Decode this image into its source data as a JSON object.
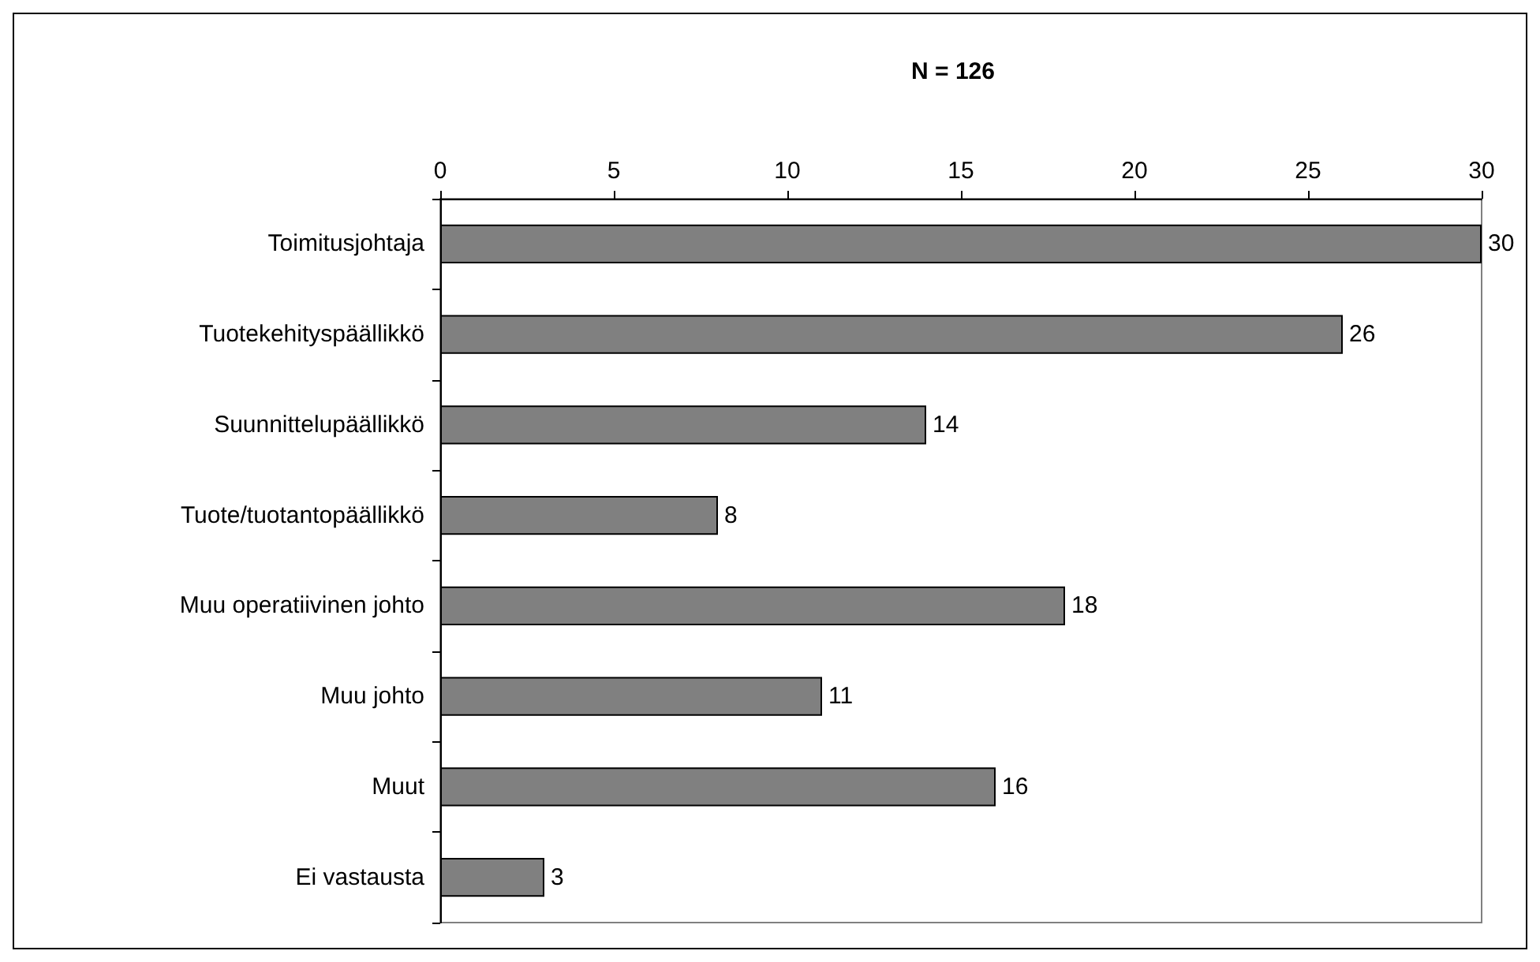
{
  "chart_data": {
    "type": "bar",
    "orientation": "horizontal",
    "title": "N = 126",
    "categories": [
      "Toimitusjohtaja",
      "Tuotekehityspäällikkö",
      "Suunnittelupäällikkö",
      "Tuote/tuotantopäällikkö",
      "Muu operatiivinen johto",
      "Muu johto",
      "Muut",
      "Ei vastausta"
    ],
    "values": [
      30,
      26,
      14,
      8,
      18,
      11,
      16,
      3
    ],
    "color": "#808080",
    "xlim": [
      0,
      30
    ],
    "xticks": [
      0,
      5,
      10,
      15,
      20,
      25,
      30
    ],
    "data_labels": true,
    "grid": false
  }
}
